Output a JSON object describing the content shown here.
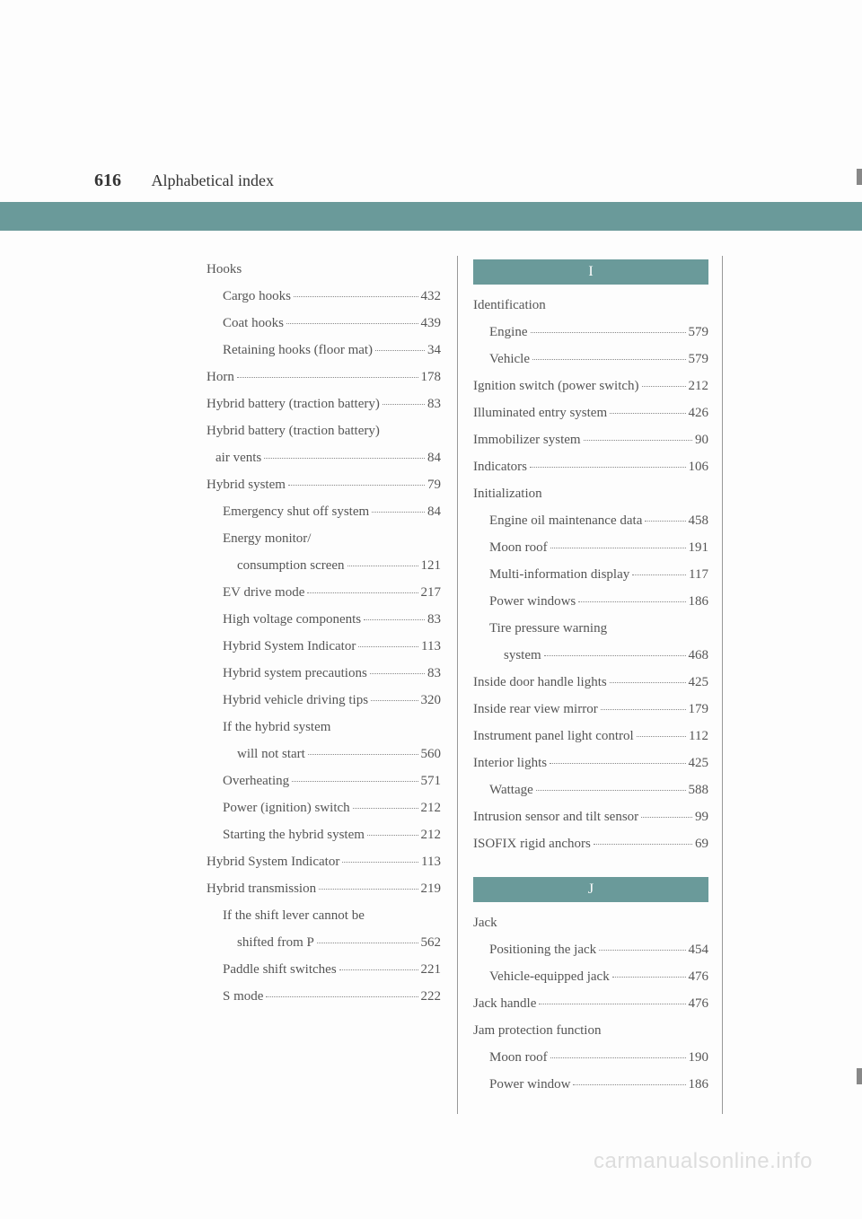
{
  "colors": {
    "teal": "#6a9a9a",
    "text": "#555555",
    "watermark": "#dddddd",
    "background": "#fdfdfd"
  },
  "header": {
    "page_number": "616",
    "title": "Alphabetical index"
  },
  "left_column": [
    {
      "label": "Hooks",
      "page": "",
      "indent": 0,
      "noval": true
    },
    {
      "label": "Cargo hooks",
      "page": "432",
      "indent": 1
    },
    {
      "label": "Coat hooks",
      "page": "439",
      "indent": 1
    },
    {
      "label": "Retaining hooks (floor mat)",
      "page": "34",
      "indent": 1
    },
    {
      "label": "Horn",
      "page": "178",
      "indent": 0
    },
    {
      "label": "Hybrid battery (traction battery)",
      "page": "83",
      "indent": 0
    },
    {
      "label": "Hybrid battery (traction battery)",
      "page": "",
      "indent": 0,
      "noval": true
    },
    {
      "label": "air vents",
      "page": "84",
      "indent": 0,
      "continuation": true
    },
    {
      "label": "Hybrid system",
      "page": "79",
      "indent": 0
    },
    {
      "label": "Emergency shut off system",
      "page": "84",
      "indent": 1
    },
    {
      "label": "Energy monitor/",
      "page": "",
      "indent": 1,
      "noval": true
    },
    {
      "label": "consumption screen",
      "page": "121",
      "indent": 2
    },
    {
      "label": "EV drive mode",
      "page": "217",
      "indent": 1
    },
    {
      "label": "High voltage components",
      "page": "83",
      "indent": 1
    },
    {
      "label": "Hybrid System Indicator",
      "page": "113",
      "indent": 1
    },
    {
      "label": "Hybrid system precautions",
      "page": "83",
      "indent": 1
    },
    {
      "label": "Hybrid vehicle driving tips",
      "page": "320",
      "indent": 1
    },
    {
      "label": "If the hybrid system",
      "page": "",
      "indent": 1,
      "noval": true
    },
    {
      "label": "will not start",
      "page": "560",
      "indent": 2
    },
    {
      "label": "Overheating",
      "page": "571",
      "indent": 1
    },
    {
      "label": "Power (ignition) switch",
      "page": "212",
      "indent": 1
    },
    {
      "label": "Starting the hybrid system",
      "page": "212",
      "indent": 1
    },
    {
      "label": "Hybrid System Indicator",
      "page": "113",
      "indent": 0
    },
    {
      "label": "Hybrid transmission",
      "page": "219",
      "indent": 0
    },
    {
      "label": "If the shift lever cannot be",
      "page": "",
      "indent": 1,
      "noval": true
    },
    {
      "label": "shifted from P",
      "page": "562",
      "indent": 2
    },
    {
      "label": "Paddle shift switches",
      "page": "221",
      "indent": 1
    },
    {
      "label": "S mode",
      "page": "222",
      "indent": 1
    }
  ],
  "sections_right": [
    {
      "letter": "I",
      "entries": [
        {
          "label": "Identification",
          "page": "",
          "indent": 0,
          "noval": true
        },
        {
          "label": "Engine",
          "page": "579",
          "indent": 1
        },
        {
          "label": "Vehicle",
          "page": "579",
          "indent": 1
        },
        {
          "label": "Ignition switch (power switch)",
          "page": "212",
          "indent": 0
        },
        {
          "label": "Illuminated entry system",
          "page": "426",
          "indent": 0
        },
        {
          "label": "Immobilizer system",
          "page": "90",
          "indent": 0
        },
        {
          "label": "Indicators",
          "page": "106",
          "indent": 0
        },
        {
          "label": "Initialization",
          "page": "",
          "indent": 0,
          "noval": true
        },
        {
          "label": "Engine oil maintenance data",
          "page": "458",
          "indent": 1
        },
        {
          "label": "Moon roof",
          "page": "191",
          "indent": 1
        },
        {
          "label": "Multi-information display",
          "page": "117",
          "indent": 1
        },
        {
          "label": "Power windows",
          "page": "186",
          "indent": 1
        },
        {
          "label": "Tire pressure warning",
          "page": "",
          "indent": 1,
          "noval": true
        },
        {
          "label": "system",
          "page": "468",
          "indent": 2
        },
        {
          "label": "Inside door handle lights",
          "page": "425",
          "indent": 0
        },
        {
          "label": "Inside rear view mirror",
          "page": "179",
          "indent": 0
        },
        {
          "label": "Instrument panel light control",
          "page": "112",
          "indent": 0
        },
        {
          "label": "Interior lights",
          "page": "425",
          "indent": 0
        },
        {
          "label": "Wattage",
          "page": "588",
          "indent": 1
        },
        {
          "label": "Intrusion sensor and tilt sensor",
          "page": "99",
          "indent": 0
        },
        {
          "label": "ISOFIX rigid anchors",
          "page": "69",
          "indent": 0
        }
      ]
    },
    {
      "letter": "J",
      "entries": [
        {
          "label": "Jack",
          "page": "",
          "indent": 0,
          "noval": true
        },
        {
          "label": "Positioning the jack",
          "page": "454",
          "indent": 1
        },
        {
          "label": "Vehicle-equipped jack",
          "page": "476",
          "indent": 1
        },
        {
          "label": "Jack handle",
          "page": "476",
          "indent": 0
        },
        {
          "label": "Jam protection function",
          "page": "",
          "indent": 0,
          "noval": true
        },
        {
          "label": "Moon roof",
          "page": "190",
          "indent": 1
        },
        {
          "label": "Power window",
          "page": "186",
          "indent": 1
        }
      ]
    }
  ],
  "watermark": "carmanualsonline.info"
}
